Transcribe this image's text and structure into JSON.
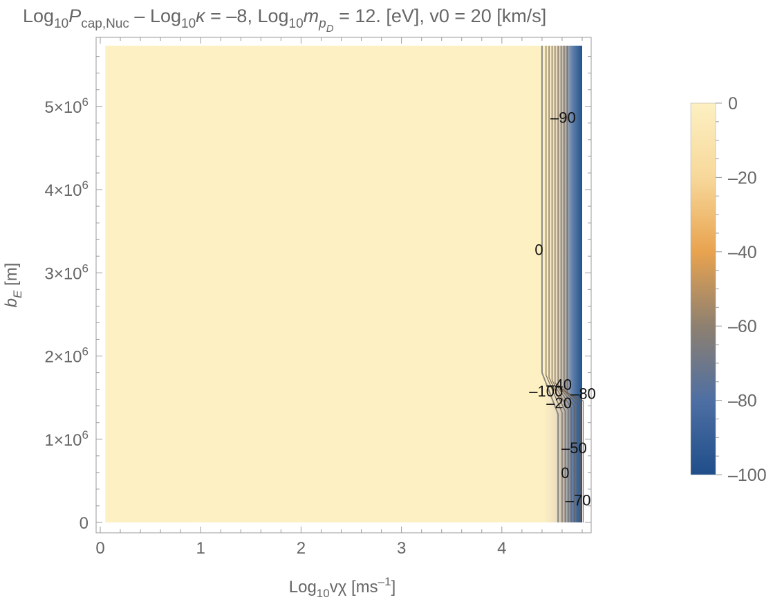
{
  "chart_data": {
    "type": "heatmap",
    "title": {
      "prefix": "Log",
      "base": "10",
      "symbol": "P",
      "subscript": "cap,Nuc",
      "rest1": " – Log",
      "rest1_sub": "10",
      "kappa": "κ",
      "rest2": " = –8, Log",
      "rest2_sub": "10",
      "mass_symbol": "m",
      "mass_sub": "p",
      "mass_subsub": "D",
      "rest3": " = 12. [eV], v0 = 20 [km/s]"
    },
    "xlabel": {
      "main": "Log",
      "sub": "10",
      "var": "vχ [ms",
      "sup": "–1",
      "end": "]"
    },
    "ylabel": {
      "var": "b",
      "sub": "E",
      "unit": " [m]"
    },
    "xlim": [
      0,
      4.8
    ],
    "ylim": [
      0,
      5700000
    ],
    "x_ticks": [
      0,
      1,
      2,
      3,
      4
    ],
    "x_tick_labels": [
      "0",
      "1",
      "2",
      "3",
      "4"
    ],
    "y_ticks": [
      0,
      1000000,
      2000000,
      3000000,
      4000000,
      5000000
    ],
    "y_tick_labels": [
      {
        "coef": "",
        "exp": "",
        "plain": "0"
      },
      {
        "coef": "1×10",
        "exp": "6"
      },
      {
        "coef": "2×10",
        "exp": "6"
      },
      {
        "coef": "3×10",
        "exp": "6"
      },
      {
        "coef": "4×10",
        "exp": "6"
      },
      {
        "coef": "5×10",
        "exp": "6"
      }
    ],
    "data_x_range": [
      0.05,
      4.8
    ],
    "data_y_range": [
      0,
      5730000
    ],
    "z_range": [
      -100,
      0
    ],
    "colorbar": {
      "ticks": [
        0,
        -20,
        -40,
        -60,
        -80,
        -100
      ],
      "tick_labels": [
        "0",
        "–20",
        "–40",
        "–60",
        "–80",
        "–100"
      ],
      "colors": [
        "#fdf0c2",
        "#f7d89a",
        "#e8a34f",
        "#8e8070",
        "#4e6fa3",
        "#1f4e8a"
      ]
    },
    "contour_labels": [
      {
        "text": "–90",
        "x": 4.61,
        "y": 4870000
      },
      {
        "text": "0",
        "x": 4.37,
        "y": 3280000
      },
      {
        "text": "–40",
        "x": 4.57,
        "y": 1660000
      },
      {
        "text": "–100",
        "x": 4.44,
        "y": 1580000
      },
      {
        "text": "–80",
        "x": 4.81,
        "y": 1550000
      },
      {
        "text": "–20",
        "x": 4.57,
        "y": 1440000
      },
      {
        "text": "–50",
        "x": 4.72,
        "y": 900000
      },
      {
        "text": "0",
        "x": 4.63,
        "y": 600000
      },
      {
        "text": "–70",
        "x": 4.76,
        "y": 270000
      }
    ]
  }
}
